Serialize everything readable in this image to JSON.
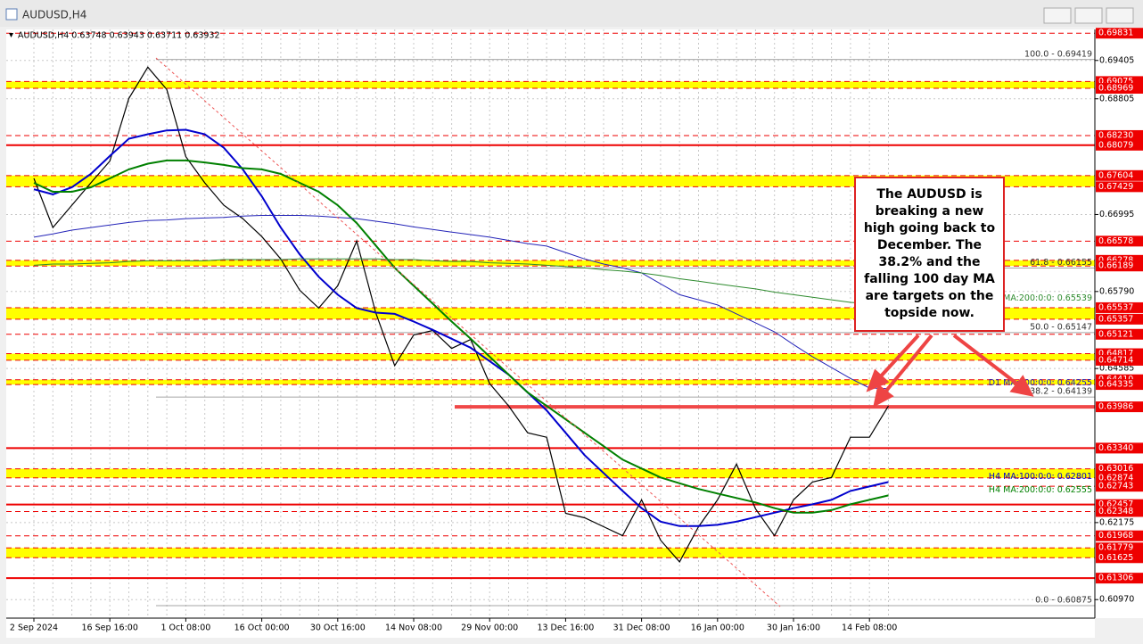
{
  "window": {
    "title": "AUDUSD,H4"
  },
  "callout": {
    "text": "The AUDUSD is breaking a new high going back to December.  The 38.2% and the falling 100 day MA are targets on the topside now."
  },
  "chart_data": {
    "type": "line",
    "subtitle": "AUDUSD,H4  0.63748 0.63943 0.63711 0.63932",
    "categories": [
      "2 Sep 2024",
      null,
      null,
      null,
      "16 Sep 16:00",
      null,
      null,
      null,
      "1 Oct 08:00",
      null,
      null,
      null,
      "16 Oct 00:00",
      null,
      null,
      null,
      "30 Oct 16:00",
      null,
      null,
      null,
      "14 Nov 08:00",
      null,
      null,
      null,
      "29 Nov 00:00",
      null,
      null,
      null,
      "13 Dec 16:00",
      null,
      null,
      null,
      "31 Dec 08:00",
      null,
      null,
      null,
      "16 Jan 00:00",
      null,
      null,
      null,
      "30 Jan 16:00",
      null,
      null,
      null,
      "14 Feb 08:00",
      null
    ],
    "series": [
      {
        "name": "AUDUSD,H4",
        "color": "#000000",
        "values": [
          0.6756,
          0.6679,
          0.6714,
          0.6749,
          0.6783,
          0.6881,
          0.693,
          0.6895,
          0.679,
          0.6749,
          0.6714,
          0.6693,
          0.6665,
          0.663,
          0.6581,
          0.6553,
          0.6588,
          0.6658,
          0.6546,
          0.6463,
          0.6511,
          0.6518,
          0.649,
          0.6504,
          0.6435,
          0.64,
          0.6358,
          0.6351,
          0.6232,
          0.6225,
          0.6211,
          0.6197,
          0.6253,
          0.619,
          0.6156,
          0.6211,
          0.6253,
          0.6309,
          0.6239,
          0.6197,
          0.6253,
          0.6281,
          0.6288,
          0.6351,
          0.6351,
          0.64
        ]
      },
      {
        "name": "H4 MA:100:0:0: 0.62801",
        "color": "#0000cd",
        "values": [
          0.6739,
          0.6731,
          0.6742,
          0.6763,
          0.6791,
          0.6818,
          0.6825,
          0.6831,
          0.6832,
          0.6825,
          0.6804,
          0.677,
          0.6728,
          0.6679,
          0.6637,
          0.6602,
          0.6574,
          0.6553,
          0.6546,
          0.6544,
          0.6532,
          0.6519,
          0.6505,
          0.6491,
          0.647,
          0.6449,
          0.6421,
          0.6393,
          0.6358,
          0.6323,
          0.6295,
          0.6267,
          0.624,
          0.6219,
          0.6212,
          0.6212,
          0.6214,
          0.6219,
          0.6226,
          0.6233,
          0.624,
          0.6246,
          0.6253,
          0.6267,
          0.6274,
          0.6281
        ]
      },
      {
        "name": "H4 MA:200:0:0: 0.62555",
        "color": "#008000",
        "values": [
          0.6749,
          0.6735,
          0.6735,
          0.6742,
          0.6756,
          0.677,
          0.6779,
          0.6784,
          0.6784,
          0.6781,
          0.6777,
          0.6772,
          0.677,
          0.6763,
          0.6749,
          0.6735,
          0.6714,
          0.6686,
          0.6651,
          0.6616,
          0.6588,
          0.656,
          0.6532,
          0.6505,
          0.6477,
          0.6449,
          0.6421,
          0.64,
          0.6379,
          0.6358,
          0.6337,
          0.6316,
          0.6302,
          0.6288,
          0.6279,
          0.627,
          0.6263,
          0.6256,
          0.6249,
          0.624,
          0.6233,
          0.6233,
          0.6237,
          0.6246,
          0.6253,
          0.626
        ]
      },
      {
        "name": "D1 MA:100:0:0: 0.64255",
        "color": "#2323b8",
        "values": [
          0.6664,
          0.6669,
          0.6675,
          0.6679,
          0.6683,
          0.6687,
          0.669,
          0.6691,
          0.6693,
          0.6694,
          0.6695,
          0.6697,
          0.6698,
          0.6698,
          0.6698,
          0.6697,
          0.6695,
          0.6693,
          0.6689,
          0.6685,
          0.668,
          0.6676,
          0.6672,
          0.6668,
          0.6664,
          0.6659,
          0.6654,
          0.665,
          0.664,
          0.663,
          0.6622,
          0.6616,
          0.6608,
          0.6591,
          0.6574,
          0.6566,
          0.6558,
          0.6544,
          0.653,
          0.6516,
          0.6496,
          0.6477,
          0.646,
          0.6443,
          0.6428,
          0.6427
        ]
      },
      {
        "name": "MA:200:0:0: 0.65539",
        "color": "#2e8b2e",
        "values": [
          0.662,
          0.6622,
          0.6622,
          0.6623,
          0.6624,
          0.6626,
          0.6627,
          0.6627,
          0.6627,
          0.6627,
          0.6629,
          0.6629,
          0.6629,
          0.6629,
          0.663,
          0.663,
          0.663,
          0.663,
          0.663,
          0.6629,
          0.6629,
          0.6627,
          0.6626,
          0.6626,
          0.6624,
          0.6623,
          0.6622,
          0.662,
          0.6618,
          0.6616,
          0.6613,
          0.6611,
          0.6608,
          0.6604,
          0.6599,
          0.6595,
          0.6591,
          0.6587,
          0.6583,
          0.6578,
          0.6574,
          0.657,
          0.6566,
          0.6562,
          0.656,
          0.656
        ]
      }
    ],
    "ylim": [
      0.6068,
      0.6989
    ],
    "yticks": [
      0.69405,
      0.68805,
      0.66995,
      {
        "value": 0.6579,
        "label": "0.65790"
      },
      0.64585,
      0.62175,
      {
        "value": 0.6097,
        "label": "0.60970"
      }
    ],
    "grid": true,
    "levels": [
      {
        "value": 0.69831,
        "label": "0.69831",
        "style": "dashed"
      },
      {
        "value": 0.69075,
        "label": "0.69075",
        "style": "zone-top"
      },
      {
        "value": 0.68969,
        "label": "0.68969",
        "style": "zone-bottom"
      },
      {
        "value": 0.6823,
        "label": "0.68230",
        "style": "dashed"
      },
      {
        "value": 0.68079,
        "label": "0.68079",
        "style": "solid"
      },
      {
        "value": 0.67604,
        "label": "0.67604",
        "style": "zone-top"
      },
      {
        "value": 0.67429,
        "label": "0.67429",
        "style": "zone-bottom"
      },
      {
        "value": 0.66578,
        "label": "0.66578",
        "style": "dashed"
      },
      {
        "value": 0.66278,
        "label": "0.66278",
        "style": "zone-top"
      },
      {
        "value": 0.66189,
        "label": "0.66189",
        "style": "zone-bottom"
      },
      {
        "value": 0.65537,
        "label": "0.65537",
        "style": "zone-top"
      },
      {
        "value": 0.65357,
        "label": "0.65357",
        "style": "zone-bottom"
      },
      {
        "value": 0.65121,
        "label": "0.65121",
        "style": "dashed"
      },
      {
        "value": 0.64817,
        "label": "0.64817",
        "style": "zone-top"
      },
      {
        "value": 0.64714,
        "label": "0.64714",
        "style": "zone-bottom"
      },
      {
        "value": 0.6441,
        "label": "0.64410",
        "style": "zone-top"
      },
      {
        "value": 0.64335,
        "label": "0.64335",
        "style": "zone-bottom"
      },
      {
        "value": 0.63986,
        "label": "0.63986",
        "style": "thick"
      },
      {
        "value": 0.6334,
        "label": "0.63340",
        "style": "solid"
      },
      {
        "value": 0.63016,
        "label": "0.63016",
        "style": "zone-top"
      },
      {
        "value": 0.62874,
        "label": "0.62874",
        "style": "zone-bottom"
      },
      {
        "value": 0.62743,
        "label": "0.62743",
        "style": "dashed"
      },
      {
        "value": 0.62457,
        "label": "0.62457",
        "style": "solid"
      },
      {
        "value": 0.62348,
        "label": "0.62348",
        "style": "dashed"
      },
      {
        "value": 0.61968,
        "label": "0.61968",
        "style": "dashed"
      },
      {
        "value": 0.61779,
        "label": "0.61779",
        "style": "zone-top"
      },
      {
        "value": 0.61625,
        "label": "0.61625",
        "style": "zone-bottom"
      },
      {
        "value": 0.61306,
        "label": "0.61306",
        "style": "solid"
      }
    ],
    "fibs": [
      {
        "value": 0.69419,
        "label": "100.0 - 0.69419"
      },
      {
        "value": 0.66155,
        "label": "61.8 - 0.66155"
      },
      {
        "value": 0.65147,
        "label": "50.0 - 0.65147"
      },
      {
        "value": 0.64139,
        "label": "38.2 - 0.64139"
      },
      {
        "value": 0.60875,
        "label": "0.0 - 0.60875"
      }
    ]
  }
}
